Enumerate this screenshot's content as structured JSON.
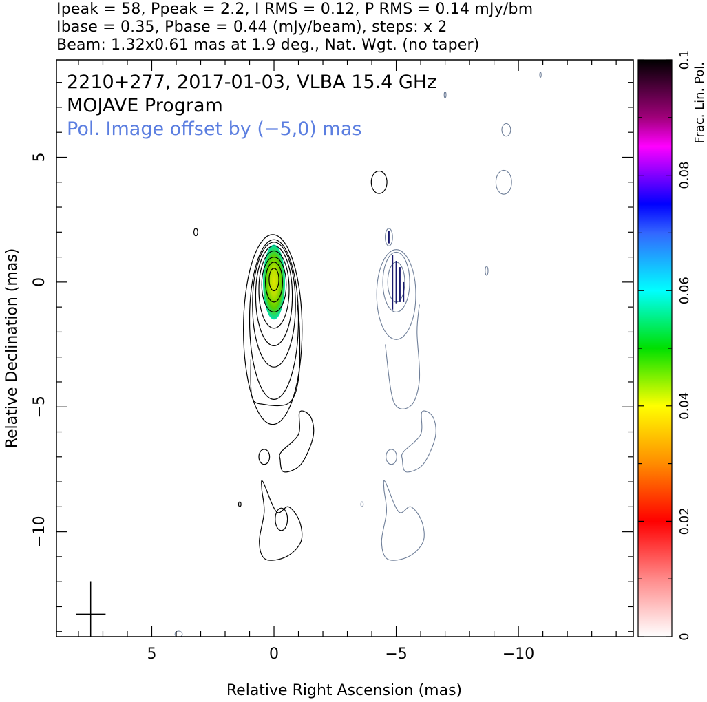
{
  "header": {
    "line1": "Ipeak = 58, Ppeak = 2.2, I RMS = 0.12, P RMS = 0.14 mJy/bm",
    "line2": "Ibase = 0.35, Pbase = 0.44 (mJy/beam), steps: x 2",
    "line3": "Beam: 1.32x0.61 mas at 1.9 deg., Nat. Wgt. (no taper)"
  },
  "annotations": {
    "source": "2210+277, 2017-01-03, VLBA 15.4 GHz",
    "program": "MOJAVE Program",
    "offset_note": "Pol. Image offset by (−5,0) mas"
  },
  "colors": {
    "stokes_i_contours": "#000000",
    "pol_contours": "#6f7f99",
    "annotation_blue": "#5b7ee0",
    "evpa_ticks": "#1a1a6e"
  },
  "chart_data": {
    "type": "heatmap",
    "title": "2210+277, 2017-01-03, VLBA 15.4 GHz",
    "xlabel": "Relative Right Ascension (mas)",
    "ylabel": "Relative Declination (mas)",
    "xlim": [
      8.9,
      -14.7
    ],
    "ylim": [
      -14.2,
      8.9
    ],
    "x_ticks": [
      5,
      0,
      -5,
      -10
    ],
    "x_tick_labels": [
      "5",
      "0",
      "−5",
      "−10"
    ],
    "y_ticks": [
      5,
      0,
      -5,
      -10
    ],
    "y_tick_labels": [
      "5",
      "0",
      "−5",
      "−10"
    ],
    "x_minor_step": 1,
    "y_minor_step": 1,
    "grid": false,
    "colorbar": {
      "label": "Frac. Lin. Pol.",
      "range": [
        0,
        0.1
      ],
      "tick_values": [
        0,
        0.02,
        0.04,
        0.06,
        0.08,
        0.1
      ],
      "tick_labels": [
        "0",
        "0.02",
        "0.04",
        "0.06",
        "0.08",
        "0.1"
      ],
      "stops": [
        {
          "v": 0.0,
          "color": "#ffffff"
        },
        {
          "v": 0.01,
          "color": "#ff8a8a"
        },
        {
          "v": 0.02,
          "color": "#ff0000"
        },
        {
          "v": 0.03,
          "color": "#ff8c00"
        },
        {
          "v": 0.04,
          "color": "#ffff00"
        },
        {
          "v": 0.05,
          "color": "#00e000"
        },
        {
          "v": 0.06,
          "color": "#00ffff"
        },
        {
          "v": 0.07,
          "color": "#3366ff"
        },
        {
          "v": 0.075,
          "color": "#0000ff"
        },
        {
          "v": 0.08,
          "color": "#8000ff"
        },
        {
          "v": 0.085,
          "color": "#ff00ff"
        },
        {
          "v": 0.09,
          "color": "#a0007a"
        },
        {
          "v": 0.1,
          "color": "#000000"
        }
      ]
    },
    "stokes_i_peak_mjy_per_beam": 58,
    "pol_peak_mjy_per_beam": 2.2,
    "i_rms": 0.12,
    "p_rms": 0.14,
    "i_base": 0.35,
    "p_base": 0.44,
    "contour_step_factor": 2,
    "beam": {
      "major_mas": 1.32,
      "minor_mas": 0.61,
      "pa_deg": 1.9,
      "x": 7.5,
      "y": -13.3
    },
    "frac_pol_core": {
      "x": 0.0,
      "y": 0.0,
      "dx": 0.45,
      "dy": 1.5
    },
    "stokes_i_contours": [
      {
        "cx": 0.0,
        "cy": 0.1,
        "rx": 0.2,
        "ry": 0.45
      },
      {
        "cx": 0.0,
        "cy": 0.0,
        "rx": 0.35,
        "ry": 0.8
      },
      {
        "cx": 0.0,
        "cy": -0.1,
        "rx": 0.5,
        "ry": 1.1
      },
      {
        "cx": 0.0,
        "cy": -0.3,
        "rx": 0.62,
        "ry": 1.55
      },
      {
        "cx": 0.0,
        "cy": -0.55,
        "rx": 0.75,
        "ry": 2.0
      },
      {
        "cx": 0.0,
        "cy": -0.9,
        "rx": 0.88,
        "ry": 2.5
      },
      {
        "cx": 0.0,
        "cy": -1.5,
        "rx": 1.0,
        "ry": 3.2
      },
      {
        "cx": 0.05,
        "cy": -1.9,
        "rx": 1.2,
        "ry": 3.8
      },
      {
        "cx": 0.4,
        "cy": -7.0,
        "rx": 0.22,
        "ry": 0.3
      },
      {
        "cx": -0.3,
        "cy": -9.5,
        "rx": 0.25,
        "ry": 0.45
      },
      {
        "cx": 3.2,
        "cy": 2.0,
        "rx": 0.08,
        "ry": 0.15
      },
      {
        "cx": 1.4,
        "cy": -8.9,
        "rx": 0.05,
        "ry": 0.1
      },
      {
        "cx": -4.3,
        "cy": 4.0,
        "rx": 0.32,
        "ry": 0.45
      }
    ],
    "pol_contours": [
      {
        "cx": -5.0,
        "cy": 0.0,
        "rx": 0.55,
        "ry": 1.2
      },
      {
        "cx": -5.0,
        "cy": 0.0,
        "rx": 0.35,
        "ry": 0.8
      },
      {
        "cx": -5.0,
        "cy": -0.5,
        "rx": 0.8,
        "ry": 1.8
      },
      {
        "cx": -4.7,
        "cy": 1.8,
        "rx": 0.15,
        "ry": 0.35
      },
      {
        "cx": -9.5,
        "cy": 6.1,
        "rx": 0.18,
        "ry": 0.25
      },
      {
        "cx": -9.4,
        "cy": 4.0,
        "rx": 0.32,
        "ry": 0.48
      },
      {
        "cx": -8.7,
        "cy": 0.45,
        "rx": 0.06,
        "ry": 0.18
      },
      {
        "cx": -4.8,
        "cy": -7.0,
        "rx": 0.22,
        "ry": 0.3
      },
      {
        "cx": -7.0,
        "cy": 7.5,
        "rx": 0.04,
        "ry": 0.12
      },
      {
        "cx": -10.9,
        "cy": 8.3,
        "rx": 0.03,
        "ry": 0.1
      },
      {
        "cx": -3.6,
        "cy": -8.9,
        "rx": 0.05,
        "ry": 0.1
      },
      {
        "cx": 3.9,
        "cy": -14.1,
        "rx": 0.15,
        "ry": 0.12
      }
    ],
    "i_jet_path": [
      [
        0.95,
        -3.1
      ],
      [
        0.9,
        -4.6
      ],
      [
        0.4,
        -4.9
      ],
      [
        -0.6,
        -4.85
      ],
      [
        -1.0,
        -3.9
      ],
      [
        -1.05,
        -2.0
      ],
      [
        -0.95,
        -0.9
      ]
    ],
    "i_knot_a": [
      [
        -0.3,
        -6.8
      ],
      [
        -1.0,
        -6.1
      ],
      [
        -1.05,
        -5.2
      ],
      [
        -1.5,
        -5.4
      ],
      [
        -1.6,
        -6.2
      ],
      [
        -1.1,
        -7.3
      ],
      [
        -0.4,
        -7.6
      ],
      [
        -0.25,
        -7.1
      ]
    ],
    "i_knot_b": [
      [
        0.5,
        -8.3
      ],
      [
        0.4,
        -9.2
      ],
      [
        0.6,
        -10.4
      ],
      [
        0.35,
        -11.1
      ],
      [
        -0.5,
        -11.0
      ],
      [
        -1.1,
        -10.4
      ],
      [
        -1.05,
        -9.6
      ],
      [
        -0.6,
        -9.0
      ],
      [
        -0.1,
        -9.2
      ],
      [
        0.45,
        -8.0
      ]
    ],
    "p_jet_path": [
      [
        -4.55,
        -2.5
      ],
      [
        -4.9,
        -4.8
      ],
      [
        -5.6,
        -4.95
      ],
      [
        -5.95,
        -3.9
      ],
      [
        -5.85,
        -2.0
      ],
      [
        -5.95,
        -0.9
      ]
    ],
    "p_knot_a": [
      [
        -5.3,
        -6.8
      ],
      [
        -6.0,
        -6.1
      ],
      [
        -6.05,
        -5.2
      ],
      [
        -6.5,
        -5.4
      ],
      [
        -6.6,
        -6.2
      ],
      [
        -6.1,
        -7.3
      ],
      [
        -5.4,
        -7.6
      ],
      [
        -5.25,
        -7.1
      ]
    ],
    "p_knot_b": [
      [
        -4.5,
        -8.3
      ],
      [
        -4.6,
        -9.2
      ],
      [
        -4.4,
        -10.4
      ],
      [
        -4.65,
        -11.1
      ],
      [
        -5.5,
        -11.0
      ],
      [
        -6.1,
        -10.4
      ],
      [
        -6.05,
        -9.6
      ],
      [
        -5.6,
        -9.0
      ],
      [
        -5.1,
        -9.2
      ],
      [
        -4.55,
        -8.0
      ]
    ],
    "evpa_ticks": [
      {
        "x": -4.85,
        "y": 0.0,
        "len": 2.2
      },
      {
        "x": -5.0,
        "y": 0.0,
        "len": 1.7
      },
      {
        "x": -5.15,
        "y": -0.1,
        "len": 1.4
      },
      {
        "x": -5.3,
        "y": -0.4,
        "len": 0.8
      },
      {
        "x": -4.7,
        "y": 1.8,
        "len": 0.5
      }
    ]
  }
}
